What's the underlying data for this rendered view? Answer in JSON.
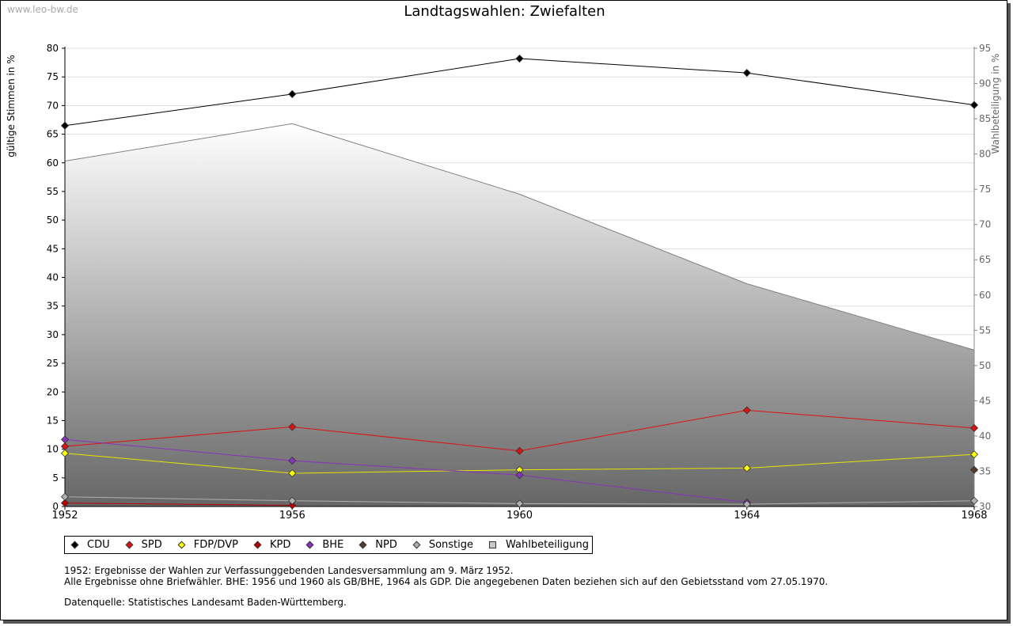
{
  "header": {
    "watermark": "www.leo-bw.de",
    "title": "Landtagswahlen: Zwiefalten"
  },
  "chart_data": {
    "type": "line",
    "title": "Landtagswahlen: Zwiefalten",
    "ylabel": "gültige Stimmen in %",
    "y2label": "Wahlbeteiligung in %",
    "ylim": [
      0,
      80
    ],
    "y2lim": [
      30,
      95
    ],
    "yticks": [
      0,
      5,
      10,
      15,
      20,
      25,
      30,
      35,
      40,
      45,
      50,
      55,
      60,
      65,
      70,
      75,
      80
    ],
    "y2ticks": [
      30,
      35,
      40,
      45,
      50,
      55,
      60,
      65,
      70,
      75,
      80,
      85,
      90,
      95
    ],
    "x": [
      1952,
      1956,
      1960,
      1964,
      1968
    ],
    "xticks": [
      "1952",
      "1956",
      "1960",
      "1964",
      "1968"
    ],
    "grid": true,
    "legend_position": "bottom",
    "area_series": {
      "name": "Wahlbeteiligung",
      "axis": "right",
      "values": [
        79.0,
        84.3,
        74.3,
        61.6,
        52.2
      ],
      "line_color": "#808080"
    },
    "series": [
      {
        "name": "CDU",
        "color": "#000000",
        "values": [
          66.5,
          72.0,
          78.2,
          75.7,
          70.1
        ]
      },
      {
        "name": "SPD",
        "color": "#dd1111",
        "values": [
          10.5,
          13.9,
          9.7,
          16.8,
          13.7
        ]
      },
      {
        "name": "FDP/DVP",
        "color": "#e6e600",
        "marker_fill": "#ffff00",
        "values": [
          9.3,
          5.8,
          6.4,
          6.7,
          9.1
        ]
      },
      {
        "name": "KPD",
        "color": "#bb0000",
        "values": [
          0.6,
          0.2,
          null,
          null,
          null
        ]
      },
      {
        "name": "BHE",
        "color": "#8833bb",
        "values": [
          11.7,
          8.0,
          5.5,
          0.7,
          null
        ]
      },
      {
        "name": "NPD",
        "color": "#5a3a2a",
        "values": [
          null,
          null,
          null,
          null,
          6.4
        ]
      },
      {
        "name": "Sonstige",
        "color": "#b0b0b0",
        "values": [
          1.7,
          1.0,
          0.5,
          0.4,
          1.0
        ]
      }
    ]
  },
  "legend": {
    "items": [
      {
        "label": "CDU",
        "color": "#000000",
        "shape": "diamond"
      },
      {
        "label": "SPD",
        "color": "#dd1111",
        "shape": "diamond"
      },
      {
        "label": "FDP/DVP",
        "color": "#ffff00",
        "shape": "diamond"
      },
      {
        "label": "KPD",
        "color": "#bb0000",
        "shape": "diamond"
      },
      {
        "label": "BHE",
        "color": "#8833bb",
        "shape": "diamond"
      },
      {
        "label": "NPD",
        "color": "#5a3a2a",
        "shape": "diamond"
      },
      {
        "label": "Sonstige",
        "color": "#b0b0b0",
        "shape": "diamond"
      },
      {
        "label": "Wahlbeteiligung",
        "color": "#c8c8c8",
        "shape": "square"
      }
    ]
  },
  "notes": {
    "line1": "1952: Ergebnisse der Wahlen zur Verfassunggebenden Landesversammlung am 9. März 1952.",
    "line2": "Alle Ergebnisse ohne Briefwähler. BHE: 1956 und 1960 als GB/BHE, 1964 als GDP. Die angegebenen Daten beziehen sich auf den Gebietsstand vom 27.05.1970.",
    "source": "Datenquelle: Statistisches Landesamt Baden-Württemberg."
  }
}
